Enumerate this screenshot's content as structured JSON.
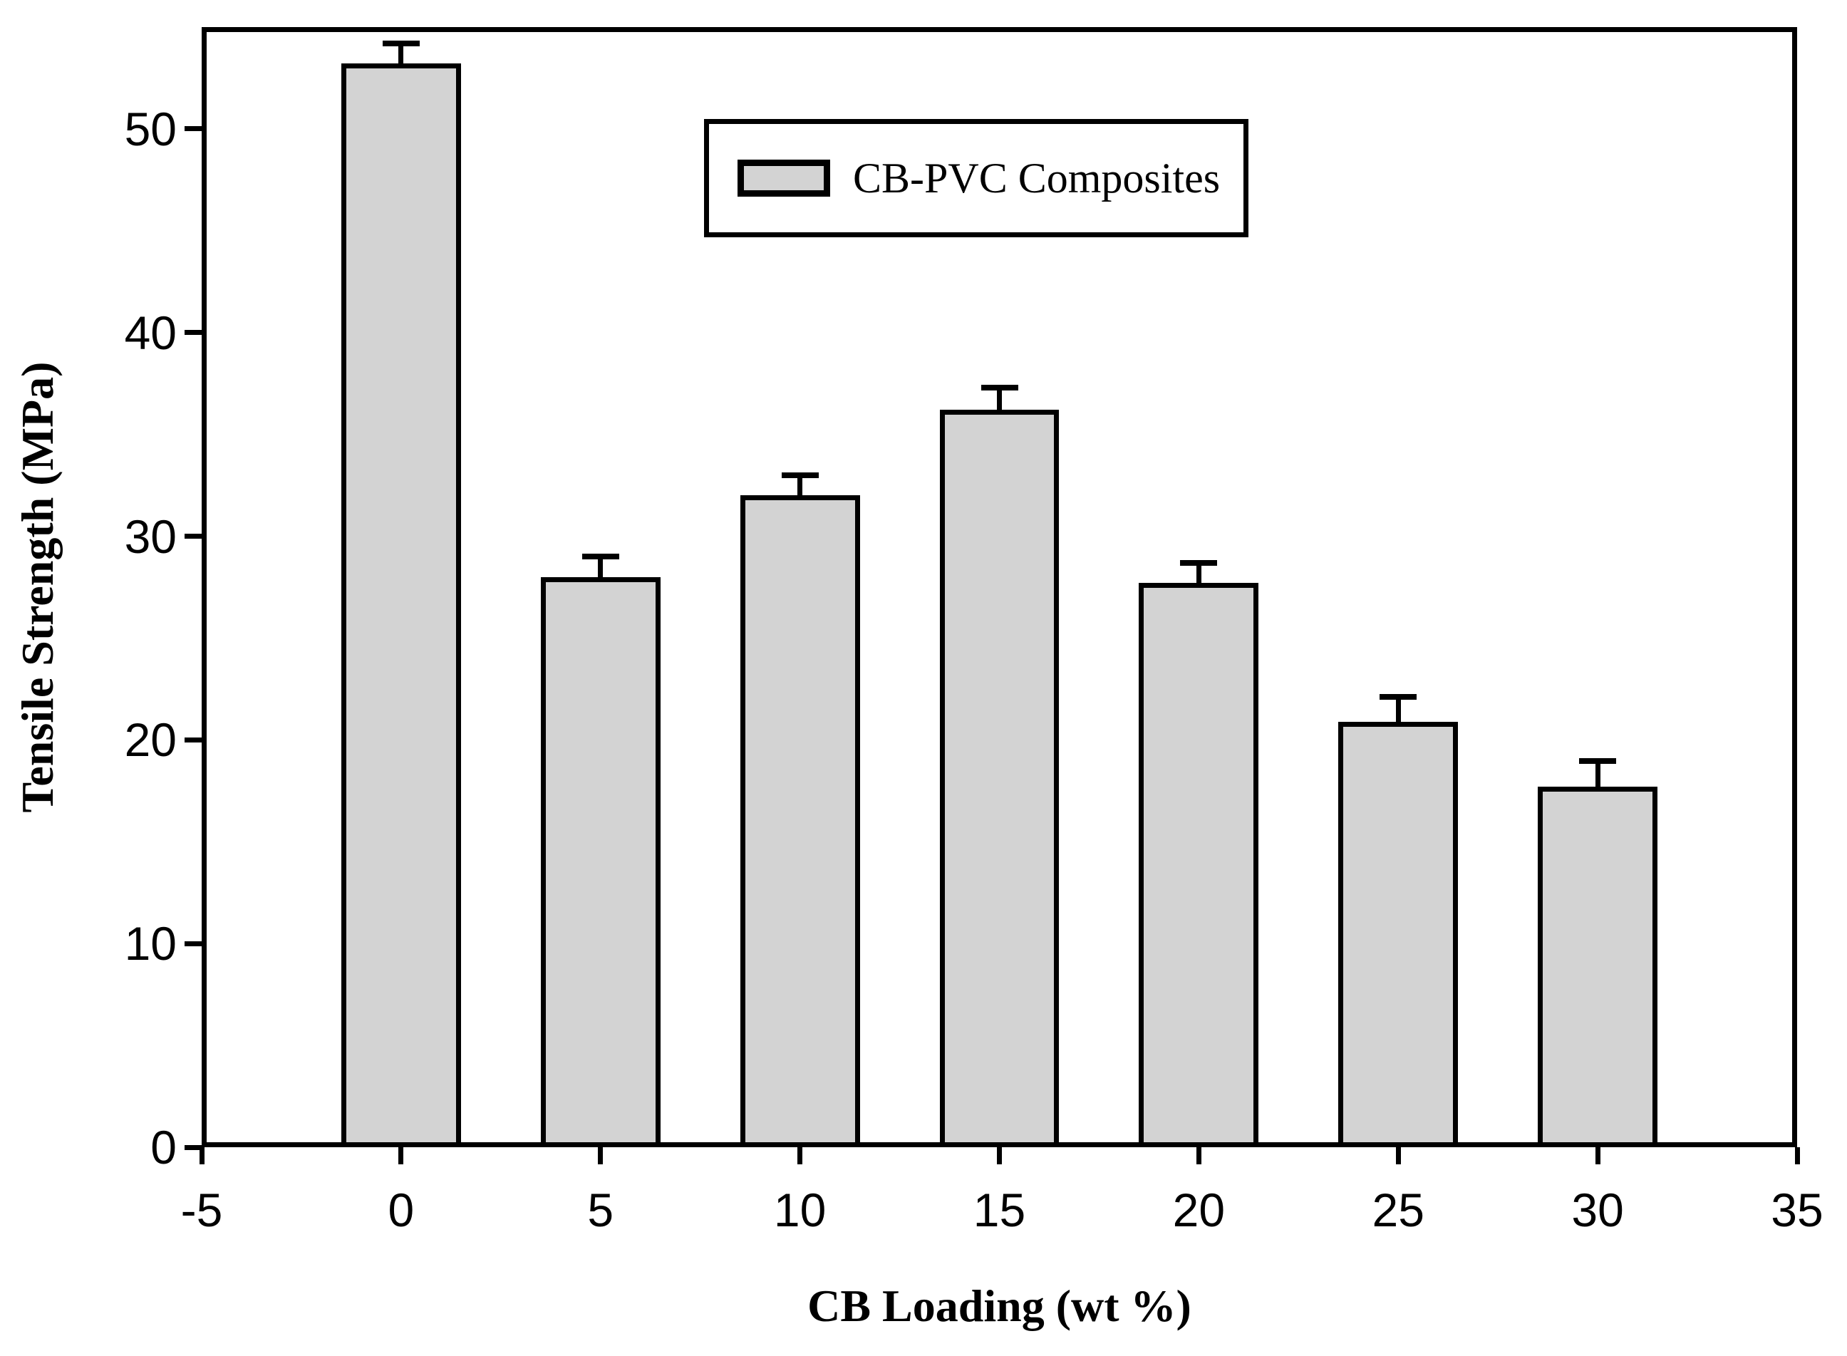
{
  "chart_data": {
    "type": "bar",
    "title": "",
    "xlabel": "CB Loading (wt %)",
    "ylabel": "Tensile Strength (MPa)",
    "legend": {
      "label": "CB-PVC Composites",
      "position": "upper-center"
    },
    "categories": [
      0,
      5,
      10,
      15,
      20,
      25,
      30
    ],
    "series": [
      {
        "name": "CB-PVC Composites",
        "values": [
          53.2,
          28.0,
          32.0,
          36.2,
          27.7,
          20.9,
          17.7
        ],
        "errors_plus": [
          1.0,
          1.0,
          1.0,
          1.1,
          1.0,
          1.2,
          1.25
        ]
      }
    ],
    "xlim": [
      -5,
      35
    ],
    "ylim": [
      0,
      55
    ],
    "x_ticks": [
      -5,
      0,
      5,
      10,
      15,
      20,
      25,
      30,
      35
    ],
    "y_ticks": [
      0,
      10,
      20,
      30,
      40,
      50
    ],
    "bar_width_units": 3,
    "grid": false,
    "colors": {
      "bar_fill": "#d3d3d3",
      "stroke": "#000000",
      "background": "#ffffff"
    }
  }
}
